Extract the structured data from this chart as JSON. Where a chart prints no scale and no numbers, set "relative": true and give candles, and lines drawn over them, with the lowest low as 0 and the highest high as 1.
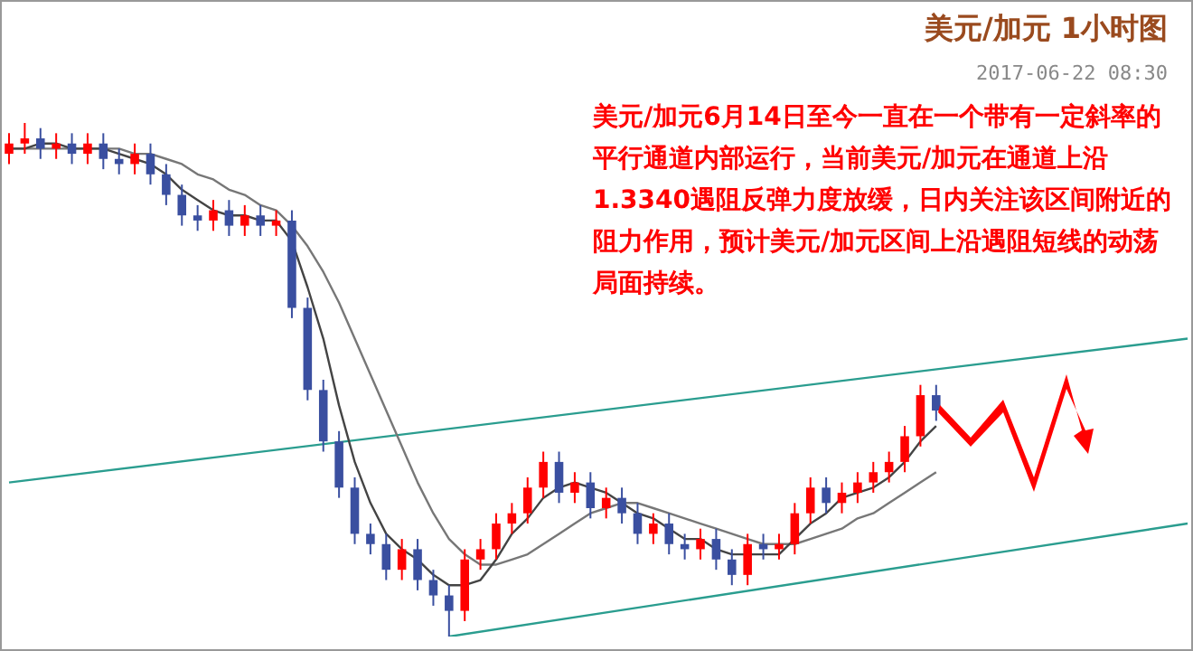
{
  "chart_data": {
    "type": "candlestick",
    "title": "美元/加元 1小时图",
    "subtitle": "2017-06-22 08:30",
    "annotations": [
      "美元/加元6月14日至今一直在一个带有一定斜率的平行通道内部运行，当前美元/加元在通道上沿1.3340遇阻反弹力度放缓，日内关注该区间附近的阻力作用，预计美元/加元区间上沿遇阻短线的动荡局面持续。"
    ],
    "relative": true,
    "tick_labels": false,
    "categories": [
      null,
      null,
      null,
      null,
      null,
      null,
      null,
      null,
      null,
      null,
      null,
      null,
      null,
      null,
      null,
      null,
      null,
      null,
      null,
      null,
      null,
      null,
      null,
      null,
      null,
      null,
      null,
      null,
      null,
      null,
      null,
      null,
      null,
      null,
      null,
      null,
      null,
      null,
      null,
      null,
      null,
      null,
      null,
      null,
      null,
      null,
      null,
      null,
      null,
      null,
      null,
      null,
      null,
      null,
      null,
      null,
      null,
      null,
      null,
      null,
      null,
      null,
      null,
      null,
      null,
      null,
      null,
      null,
      null,
      null,
      null,
      null,
      null,
      null,
      null,
      null
    ],
    "ohlc": [
      [
        0.94,
        0.98,
        0.92,
        0.96
      ],
      [
        0.96,
        1.0,
        0.94,
        0.97
      ],
      [
        0.97,
        0.99,
        0.93,
        0.95
      ],
      [
        0.95,
        0.98,
        0.93,
        0.96
      ],
      [
        0.96,
        0.98,
        0.92,
        0.94
      ],
      [
        0.94,
        0.98,
        0.92,
        0.96
      ],
      [
        0.96,
        0.98,
        0.91,
        0.93
      ],
      [
        0.93,
        0.95,
        0.9,
        0.92
      ],
      [
        0.92,
        0.96,
        0.9,
        0.94
      ],
      [
        0.94,
        0.96,
        0.88,
        0.9
      ],
      [
        0.9,
        0.92,
        0.84,
        0.86
      ],
      [
        0.86,
        0.88,
        0.8,
        0.82
      ],
      [
        0.82,
        0.84,
        0.79,
        0.81
      ],
      [
        0.81,
        0.85,
        0.79,
        0.83
      ],
      [
        0.83,
        0.85,
        0.78,
        0.8
      ],
      [
        0.8,
        0.84,
        0.78,
        0.82
      ],
      [
        0.82,
        0.84,
        0.78,
        0.8
      ],
      [
        0.8,
        0.83,
        0.78,
        0.81
      ],
      [
        0.81,
        0.83,
        0.62,
        0.64
      ],
      [
        0.64,
        0.66,
        0.46,
        0.48
      ],
      [
        0.48,
        0.5,
        0.36,
        0.38
      ],
      [
        0.38,
        0.4,
        0.27,
        0.29
      ],
      [
        0.29,
        0.31,
        0.18,
        0.2
      ],
      [
        0.2,
        0.22,
        0.16,
        0.18
      ],
      [
        0.18,
        0.2,
        0.11,
        0.13
      ],
      [
        0.13,
        0.19,
        0.11,
        0.17
      ],
      [
        0.17,
        0.19,
        0.09,
        0.11
      ],
      [
        0.11,
        0.13,
        0.06,
        0.08
      ],
      [
        0.08,
        0.1,
        0,
        0.05
      ],
      [
        0.05,
        0.17,
        0.03,
        0.15
      ],
      [
        0.15,
        0.19,
        0.13,
        0.17
      ],
      [
        0.17,
        0.24,
        0.15,
        0.22
      ],
      [
        0.22,
        0.26,
        0.2,
        0.24
      ],
      [
        0.24,
        0.31,
        0.22,
        0.29
      ],
      [
        0.29,
        0.36,
        0.27,
        0.34
      ],
      [
        0.34,
        0.36,
        0.26,
        0.28
      ],
      [
        0.28,
        0.32,
        0.26,
        0.3
      ],
      [
        0.3,
        0.32,
        0.23,
        0.25
      ],
      [
        0.25,
        0.29,
        0.23,
        0.27
      ],
      [
        0.27,
        0.29,
        0.22,
        0.24
      ],
      [
        0.24,
        0.26,
        0.18,
        0.2
      ],
      [
        0.2,
        0.24,
        0.18,
        0.22
      ],
      [
        0.22,
        0.24,
        0.16,
        0.18
      ],
      [
        0.18,
        0.2,
        0.15,
        0.17
      ],
      [
        0.17,
        0.21,
        0.15,
        0.19
      ],
      [
        0.19,
        0.21,
        0.13,
        0.15
      ],
      [
        0.15,
        0.17,
        0.1,
        0.12
      ],
      [
        0.12,
        0.2,
        0.1,
        0.18
      ],
      [
        0.18,
        0.2,
        0.15,
        0.17
      ],
      [
        0.17,
        0.2,
        0.15,
        0.18
      ],
      [
        0.18,
        0.26,
        0.16,
        0.24
      ],
      [
        0.24,
        0.31,
        0.22,
        0.29
      ],
      [
        0.29,
        0.31,
        0.24,
        0.26
      ],
      [
        0.26,
        0.3,
        0.24,
        0.28
      ],
      [
        0.28,
        0.32,
        0.26,
        0.3
      ],
      [
        0.3,
        0.34,
        0.28,
        0.32
      ],
      [
        0.32,
        0.36,
        0.3,
        0.34
      ],
      [
        0.34,
        0.41,
        0.32,
        0.39
      ],
      [
        0.39,
        0.49,
        0.37,
        0.47
      ],
      [
        0.47,
        0.49,
        0.42,
        0.44
      ],
      null,
      null,
      null,
      null,
      null,
      null,
      null,
      null,
      null,
      null,
      null,
      null,
      null,
      null,
      null,
      null
    ],
    "colors": [
      "#ff0000",
      "#ff0000",
      "#3a4fa0",
      "#ff0000",
      "#3a4fa0",
      "#ff0000",
      "#3a4fa0",
      "#3a4fa0",
      "#ff0000",
      "#3a4fa0",
      "#3a4fa0",
      "#3a4fa0",
      "#3a4fa0",
      "#ff0000",
      "#3a4fa0",
      "#ff0000",
      "#3a4fa0",
      "#ff0000",
      "#3a4fa0",
      "#3a4fa0",
      "#3a4fa0",
      "#3a4fa0",
      "#3a4fa0",
      "#3a4fa0",
      "#3a4fa0",
      "#ff0000",
      "#3a4fa0",
      "#3a4fa0",
      "#3a4fa0",
      "#ff0000",
      "#ff0000",
      "#ff0000",
      "#ff0000",
      "#ff0000",
      "#ff0000",
      "#3a4fa0",
      "#ff0000",
      "#3a4fa0",
      "#ff0000",
      "#3a4fa0",
      "#3a4fa0",
      "#ff0000",
      "#3a4fa0",
      "#3a4fa0",
      "#ff0000",
      "#3a4fa0",
      "#3a4fa0",
      "#ff0000",
      "#3a4fa0",
      "#ff0000",
      "#ff0000",
      "#ff0000",
      "#3a4fa0",
      "#ff0000",
      "#ff0000",
      "#ff0000",
      "#ff0000",
      "#ff0000",
      "#ff0000",
      "#3a4fa0",
      null,
      null,
      null,
      null,
      null,
      null,
      null,
      null,
      null,
      null,
      null,
      null,
      null,
      null,
      null,
      null
    ],
    "series": [
      {
        "type": "line",
        "color": "#444444",
        "values": [
          0.95,
          0.95,
          0.96,
          0.96,
          0.95,
          0.95,
          0.95,
          0.94,
          0.93,
          0.92,
          0.9,
          0.87,
          0.85,
          0.83,
          0.82,
          0.82,
          0.81,
          0.81,
          0.77,
          0.68,
          0.58,
          0.45,
          0.34,
          0.26,
          0.2,
          0.17,
          0.15,
          0.12,
          0.1,
          0.1,
          0.11,
          0.15,
          0.2,
          0.23,
          0.27,
          0.29,
          0.3,
          0.29,
          0.28,
          0.26,
          0.24,
          0.23,
          0.21,
          0.19,
          0.19,
          0.17,
          0.16,
          0.16,
          0.16,
          0.16,
          0.19,
          0.22,
          0.24,
          0.27,
          0.28,
          0.29,
          0.31,
          0.34,
          0.38,
          0.41,
          null,
          null,
          null,
          null,
          null,
          null,
          null,
          null,
          null,
          null,
          null,
          null,
          null,
          null,
          null,
          null
        ]
      },
      {
        "type": "line",
        "color": "#777777",
        "values": [
          0.95,
          0.95,
          0.95,
          0.95,
          0.95,
          0.95,
          0.95,
          0.95,
          0.94,
          0.94,
          0.93,
          0.92,
          0.9,
          0.89,
          0.87,
          0.86,
          0.84,
          0.83,
          0.8,
          0.76,
          0.71,
          0.65,
          0.58,
          0.51,
          0.44,
          0.37,
          0.3,
          0.24,
          0.19,
          0.16,
          0.14,
          0.14,
          0.15,
          0.16,
          0.18,
          0.2,
          0.22,
          0.24,
          0.25,
          0.26,
          0.26,
          0.25,
          0.24,
          0.23,
          0.22,
          0.21,
          0.2,
          0.19,
          0.18,
          0.18,
          0.18,
          0.19,
          0.2,
          0.21,
          0.23,
          0.24,
          0.26,
          0.28,
          0.3,
          0.32,
          null,
          null,
          null,
          null,
          null,
          null,
          null,
          null,
          null,
          null,
          null,
          null,
          null,
          null,
          null,
          null
        ]
      },
      {
        "type": "line",
        "color": "#2a9d8f",
        "values": [
          0.3,
          null,
          null,
          null,
          null,
          null,
          null,
          null,
          null,
          null,
          null,
          null,
          null,
          null,
          null,
          null,
          null,
          null,
          null,
          null,
          null,
          null,
          null,
          null,
          null,
          null,
          null,
          null,
          null,
          null,
          null,
          null,
          null,
          null,
          null,
          null,
          null,
          null,
          null,
          null,
          null,
          null,
          null,
          null,
          null,
          null,
          null,
          null,
          null,
          null,
          null,
          null,
          null,
          null,
          null,
          null,
          null,
          null,
          null,
          null,
          null,
          null,
          null,
          null,
          null,
          null,
          null,
          null,
          null,
          null,
          null,
          null,
          null,
          null,
          null,
          0.58
        ]
      },
      {
        "type": "line",
        "color": "#2a9d8f",
        "values": [
          null,
          null,
          null,
          null,
          null,
          null,
          null,
          null,
          null,
          null,
          null,
          null,
          null,
          null,
          null,
          null,
          null,
          null,
          null,
          null,
          null,
          null,
          null,
          null,
          null,
          null,
          null,
          null,
          0,
          null,
          null,
          null,
          null,
          null,
          null,
          null,
          null,
          null,
          null,
          null,
          null,
          null,
          null,
          null,
          null,
          null,
          null,
          null,
          null,
          null,
          null,
          null,
          null,
          null,
          null,
          null,
          null,
          null,
          null,
          null,
          null,
          null,
          null,
          null,
          null,
          null,
          null,
          null,
          null,
          null,
          null,
          null,
          null,
          null,
          null,
          0.22
        ]
      }
    ]
  }
}
